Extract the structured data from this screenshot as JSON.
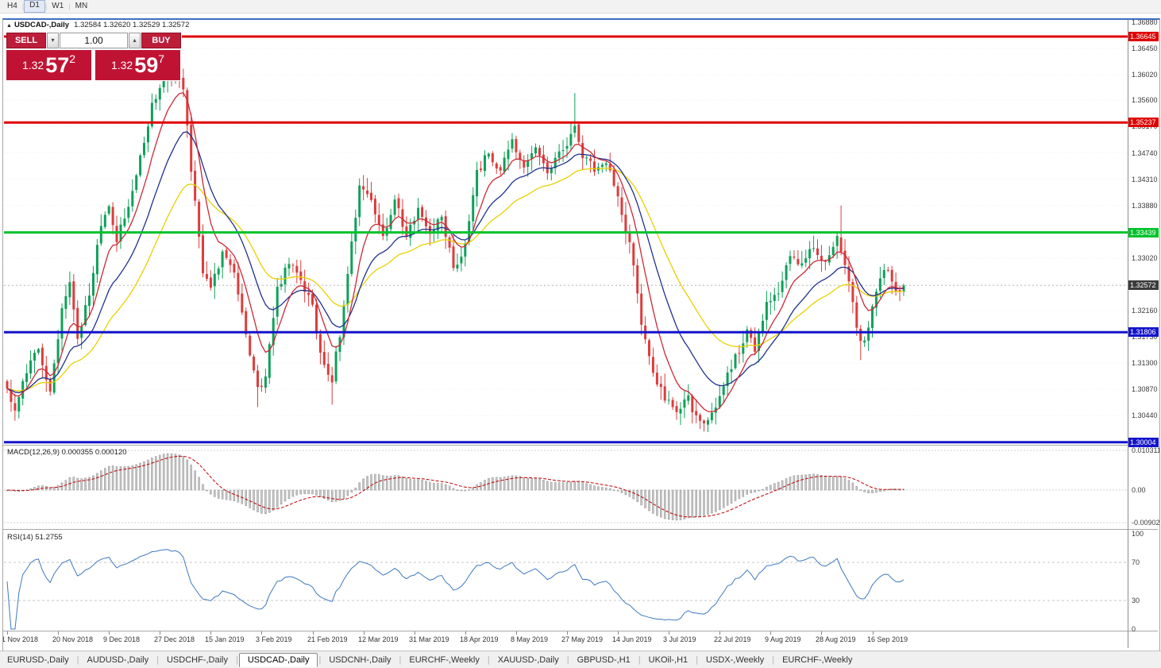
{
  "toolbar": {
    "timeframes": [
      "H4",
      "D1",
      "W1",
      "MN"
    ],
    "active": "D1"
  },
  "chart": {
    "window_title": "USDCAD-,Daily",
    "ohlc_text": "1.32584 1.32620 1.32529 1.32572",
    "trade_panel": {
      "sell_label": "SELL",
      "buy_label": "BUY",
      "volume": "1.00",
      "bid": {
        "prefix": "1.32",
        "big": "57",
        "pip": "2"
      },
      "ask": {
        "prefix": "1.32",
        "big": "59",
        "pip": "7"
      }
    }
  },
  "macd": {
    "label": "MACD(12,26,9) 0.000355 0.000120",
    "axis_labels": [
      "0.010311",
      "0.00",
      "-0.0090203"
    ]
  },
  "rsi": {
    "label": "RSI(14) 51.2755",
    "axis_labels": [
      "100",
      "70",
      "30",
      "0"
    ]
  },
  "tabs": {
    "active_index": 3,
    "items": [
      "EURUSD-,Daily",
      "AUDUSD-,Daily",
      "USDCHF-,Daily",
      "USDCAD-,Daily",
      "USDCNH-,Daily",
      "EURCHF-,Weekly",
      "XAUUSD-,Daily",
      "GBPUSD-,H1",
      "UKOil-,H1",
      "USDX-,Weekly",
      "EURCHF-,Weekly"
    ]
  },
  "chart_data": {
    "type": "candlestick",
    "symbol": "USDCAD",
    "timeframe": "Daily",
    "visible_candles": 230,
    "y_axis": {
      "top_price": 1.36762,
      "price_per_pixel": 0.00013
    },
    "candle_colors": {
      "up": "#0fa05a",
      "down": "#dd3c3c"
    },
    "last_close": 1.32572,
    "current_price": {
      "price": 1.32572,
      "label": "1.32572"
    },
    "levels": [
      {
        "price": 1.36645,
        "label": "1.36645",
        "color": "#e00000"
      },
      {
        "price": 1.35237,
        "label": "1.35237",
        "color": "#e00000"
      },
      {
        "price": 1.33439,
        "label": "1.33439",
        "color": "#00c22b"
      },
      {
        "price": 1.31806,
        "label": "1.31806",
        "color": "#1414cc"
      },
      {
        "price": 1.30004,
        "label": "1.30004",
        "color": "#1414cc"
      }
    ],
    "price_grid_labels": [
      "1.36880",
      "1.36450",
      "1.36020",
      "1.35600",
      "1.35170",
      "1.34740",
      "1.34310",
      "1.33880",
      "1.33450",
      "1.33020",
      "1.32590",
      "1.32160",
      "1.31730",
      "1.31300",
      "1.30870",
      "1.30440",
      "1.30010"
    ],
    "time_labels": [
      {
        "label": "1 Nov 2018",
        "index": 0
      },
      {
        "label": "20 Nov 2018",
        "index": 13
      },
      {
        "label": "9 Dec 2018",
        "index": 26
      },
      {
        "label": "27 Dec 2018",
        "index": 39
      },
      {
        "label": "15 Jan 2019",
        "index": 52
      },
      {
        "label": "3 Feb 2019",
        "index": 65
      },
      {
        "label": "21 Feb 2019",
        "index": 78
      },
      {
        "label": "12 Mar 2019",
        "index": 91
      },
      {
        "label": "31 Mar 2019",
        "index": 104
      },
      {
        "label": "18 Apr 2019",
        "index": 117
      },
      {
        "label": "8 May 2019",
        "index": 130
      },
      {
        "label": "27 May 2019",
        "index": 143
      },
      {
        "label": "14 Jun 2019",
        "index": 156
      },
      {
        "label": "3 Jul 2019",
        "index": 169
      },
      {
        "label": "22 Jul 2019",
        "index": 182
      },
      {
        "label": "9 Aug 2019",
        "index": 195
      },
      {
        "label": "28 Aug 2019",
        "index": 208
      },
      {
        "label": "16 Sep 2019",
        "index": 221
      }
    ],
    "close_anchors": [
      [
        0,
        1.3085
      ],
      [
        2,
        1.305
      ],
      [
        5,
        1.312
      ],
      [
        8,
        1.315
      ],
      [
        11,
        1.309
      ],
      [
        14,
        1.322
      ],
      [
        16,
        1.326
      ],
      [
        18,
        1.3175
      ],
      [
        21,
        1.324
      ],
      [
        23,
        1.333
      ],
      [
        26,
        1.3385
      ],
      [
        28,
        1.333
      ],
      [
        31,
        1.339
      ],
      [
        34,
        1.3465
      ],
      [
        37,
        1.355
      ],
      [
        40,
        1.359
      ],
      [
        43,
        1.3605
      ],
      [
        45,
        1.3575
      ],
      [
        47,
        1.345
      ],
      [
        50,
        1.328
      ],
      [
        52,
        1.3255
      ],
      [
        55,
        1.3305
      ],
      [
        58,
        1.328
      ],
      [
        61,
        1.318
      ],
      [
        64,
        1.3085
      ],
      [
        66,
        1.311
      ],
      [
        69,
        1.325
      ],
      [
        72,
        1.3295
      ],
      [
        75,
        1.326
      ],
      [
        78,
        1.323
      ],
      [
        80,
        1.314
      ],
      [
        83,
        1.3105
      ],
      [
        85,
        1.318
      ],
      [
        88,
        1.333
      ],
      [
        90,
        1.342
      ],
      [
        93,
        1.339
      ],
      [
        96,
        1.334
      ],
      [
        99,
        1.3395
      ],
      [
        102,
        1.334
      ],
      [
        105,
        1.3385
      ],
      [
        108,
        1.334
      ],
      [
        111,
        1.337
      ],
      [
        114,
        1.3285
      ],
      [
        117,
        1.332
      ],
      [
        120,
        1.344
      ],
      [
        123,
        1.3475
      ],
      [
        126,
        1.3445
      ],
      [
        129,
        1.349
      ],
      [
        132,
        1.345
      ],
      [
        135,
        1.348
      ],
      [
        138,
        1.344
      ],
      [
        141,
        1.3475
      ],
      [
        144,
        1.35
      ],
      [
        145,
        1.352
      ],
      [
        147,
        1.347
      ],
      [
        150,
        1.3445
      ],
      [
        153,
        1.346
      ],
      [
        156,
        1.3395
      ],
      [
        159,
        1.333
      ],
      [
        162,
        1.32
      ],
      [
        165,
        1.311
      ],
      [
        168,
        1.3075
      ],
      [
        171,
        1.305
      ],
      [
        174,
        1.307
      ],
      [
        177,
        1.303
      ],
      [
        180,
        1.3045
      ],
      [
        183,
        1.309
      ],
      [
        186,
        1.314
      ],
      [
        189,
        1.318
      ],
      [
        191,
        1.3155
      ],
      [
        194,
        1.323
      ],
      [
        197,
        1.325
      ],
      [
        200,
        1.331
      ],
      [
        203,
        1.329
      ],
      [
        206,
        1.332
      ],
      [
        209,
        1.3295
      ],
      [
        212,
        1.333
      ],
      [
        215,
        1.326
      ],
      [
        218,
        1.316
      ],
      [
        220,
        1.3185
      ],
      [
        222,
        1.325
      ],
      [
        224,
        1.329
      ],
      [
        226,
        1.327
      ],
      [
        228,
        1.324
      ],
      [
        229,
        1.32572
      ]
    ],
    "wick_overrides": [
      [
        43,
        "high",
        1.3622
      ],
      [
        145,
        "high",
        1.3572
      ],
      [
        213,
        "high",
        1.3388
      ],
      [
        2,
        "low",
        1.3036
      ],
      [
        64,
        "low",
        1.3058
      ],
      [
        83,
        "low",
        1.3062
      ],
      [
        178,
        "low",
        1.3018
      ],
      [
        218,
        "low",
        1.3135
      ]
    ],
    "moving_averages": [
      {
        "name": "fast",
        "period": 8,
        "color": "#cc2936"
      },
      {
        "name": "medium",
        "period": 18,
        "color": "#20318f"
      },
      {
        "name": "slow",
        "period": 34,
        "color": "#e8d100"
      }
    ],
    "indicators": {
      "macd": {
        "fast": 12,
        "slow": 26,
        "signal": 9,
        "current": "0.000355",
        "signal_current": "0.000120",
        "histogram_color": "#c9c9c9",
        "signal_color": "#c00000"
      },
      "rsi": {
        "period": 14,
        "current": "51.2755",
        "color": "#3d79c0",
        "levels": [
          70,
          30
        ]
      }
    }
  }
}
